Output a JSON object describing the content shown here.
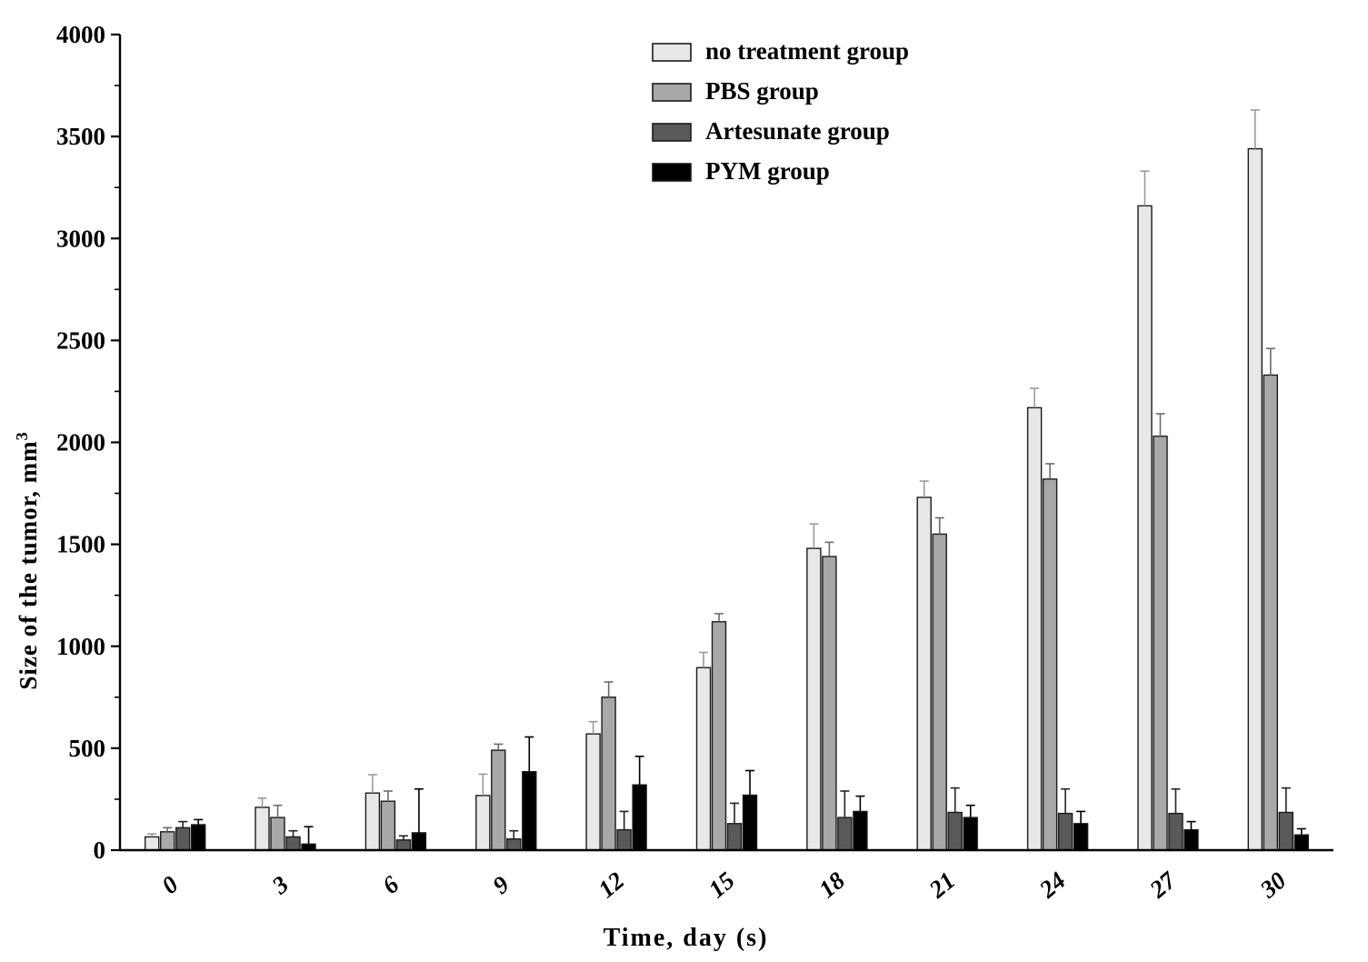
{
  "chart_data": {
    "type": "bar",
    "title": "",
    "xlabel": "Time, day (s)",
    "ylabel": "Size of the tumor, mm",
    "ylabel_superscript": "3",
    "categories": [
      "0",
      "3",
      "6",
      "9",
      "12",
      "15",
      "18",
      "21",
      "24",
      "27",
      "30"
    ],
    "ylim": [
      0,
      4000
    ],
    "ytick_step": 500,
    "yminor_step": 250,
    "grid": false,
    "legend_position": "top-center",
    "axis_color": "#000000",
    "series": [
      {
        "name": "no treatment group",
        "color": "#e8e8e8",
        "error_color": "#9a9a9a",
        "values": [
          65,
          210,
          280,
          268,
          570,
          895,
          1480,
          1730,
          2170,
          3160,
          3440
        ],
        "errors": [
          15,
          45,
          90,
          105,
          60,
          75,
          120,
          80,
          95,
          170,
          190
        ]
      },
      {
        "name": "PBS group",
        "color": "#a8a8a8",
        "error_color": "#6a6a6a",
        "values": [
          90,
          160,
          240,
          490,
          750,
          1120,
          1440,
          1550,
          1820,
          2030,
          2330
        ],
        "errors": [
          20,
          60,
          50,
          30,
          75,
          40,
          70,
          80,
          75,
          110,
          130
        ]
      },
      {
        "name": "Artesunate group",
        "color": "#595959",
        "error_color": "#222222",
        "values": [
          110,
          65,
          50,
          55,
          100,
          130,
          160,
          185,
          180,
          180,
          185
        ],
        "errors": [
          30,
          30,
          20,
          40,
          90,
          100,
          130,
          120,
          120,
          120,
          120
        ]
      },
      {
        "name": "PYM group",
        "color": "#000000",
        "error_color": "#000000",
        "values": [
          125,
          30,
          85,
          385,
          320,
          270,
          190,
          160,
          130,
          100,
          75
        ],
        "errors": [
          25,
          85,
          215,
          170,
          140,
          120,
          75,
          60,
          60,
          40,
          30
        ]
      }
    ]
  }
}
